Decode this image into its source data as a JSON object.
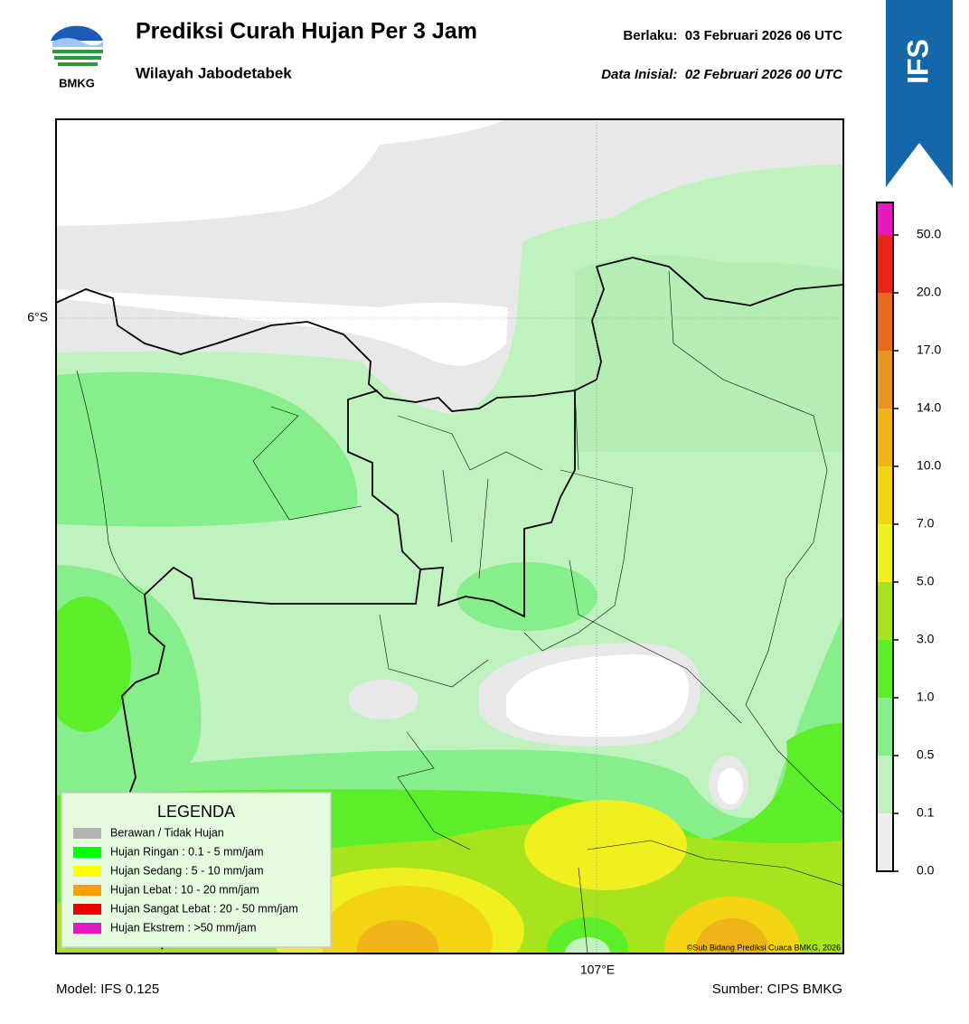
{
  "header": {
    "logo_text": "BMKG",
    "title": "Prediksi Curah Hujan Per 3 Jam",
    "subtitle": "Wilayah Jabodetabek",
    "valid": "Berlaku:  03 Februari 2026 06 UTC",
    "init": "Data Inisial:  02 Februari 2026 00 UTC",
    "badge": "IFS"
  },
  "map": {
    "lat_label": "6°S",
    "lon_label": "107°E",
    "credit": "©Sub Bidang Prediksi Cuaca BMKG, 2026"
  },
  "legend": {
    "title": "LEGENDA",
    "items": [
      {
        "label": "Berawan / Tidak Hujan",
        "color": "#b4b4b4"
      },
      {
        "label": "Hujan Ringan : 0.1 - 5 mm/jam",
        "color": "#00ff00"
      },
      {
        "label": "Hujan Sedang : 5 - 10 mm/jam",
        "color": "#ffff00"
      },
      {
        "label": "Hujan Lebat : 10 - 20 mm/jam",
        "color": "#ffa000"
      },
      {
        "label": "Hujan Sangat Lebat : 20 - 50 mm/jam",
        "color": "#ee0000"
      },
      {
        "label": "Hujan Ekstrem : >50 mm/jam",
        "color": "#e818c0"
      }
    ]
  },
  "colorbar": {
    "ticks": [
      {
        "value": 0,
        "label": "0.0"
      },
      0.1,
      0.5,
      {
        "value": 1,
        "label": "1.0"
      },
      {
        "value": 3,
        "label": "3.0"
      },
      {
        "value": 5,
        "label": "5.0"
      },
      {
        "value": 7,
        "label": "7.0"
      },
      {
        "value": 10,
        "label": "10.0"
      },
      {
        "value": 14,
        "label": "14.0"
      },
      {
        "value": 17,
        "label": "17.0"
      },
      {
        "value": 20,
        "label": "20.0"
      },
      {
        "value": 50,
        "label": "50.0"
      }
    ],
    "colors": [
      "#eeeeee",
      "#c0f2c0",
      "#86ee8a",
      "#5cee28",
      "#a8e41e",
      "#f0f020",
      "#f2d412",
      "#eeb418",
      "#e8941e",
      "#e86a1e",
      "#e82618",
      "#e818c0"
    ]
  },
  "footer": {
    "model": "Model: IFS 0.125",
    "source": "Sumber: CIPS BMKG"
  }
}
